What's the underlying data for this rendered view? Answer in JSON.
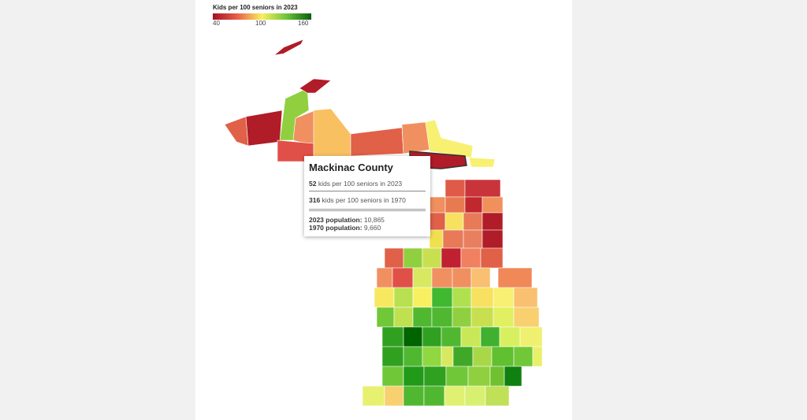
{
  "legend": {
    "title": "Kids per 100 seniors in 2023",
    "min_label": "40",
    "mid_label": "100",
    "max_label": "160",
    "scale_colors": [
      "#a50f23",
      "#f8f060",
      "#0b5e10"
    ]
  },
  "tooltip": {
    "county": "Mackinac County",
    "kids_2023_value": "52",
    "kids_2023_text": " kids per 100 seniors in 2023",
    "kids_1970_value": "316",
    "kids_1970_text": " kids per 100 seniors in 1970",
    "pop_2023_label": "2023 population:",
    "pop_2023_value": " 10,865",
    "pop_1970_label": "1970 population:",
    "pop_1970_value": " 9,660"
  },
  "highlighted_county": "Mackinac County"
}
